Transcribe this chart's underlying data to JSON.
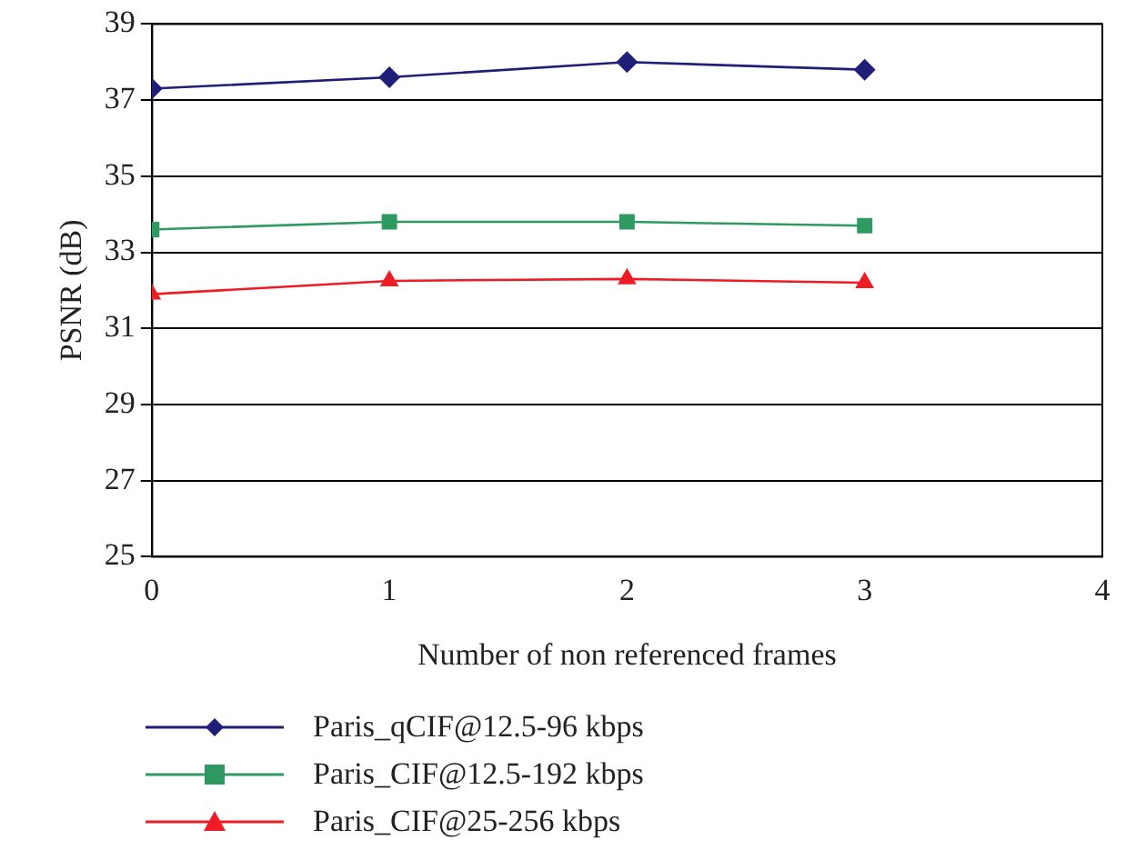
{
  "chart_data": {
    "type": "line",
    "xlabel": "Number of non referenced frames",
    "ylabel": "PSNR (dB)",
    "xlim": [
      0,
      4
    ],
    "xticks": [
      0,
      1,
      2,
      3,
      4
    ],
    "ylim": [
      25,
      39
    ],
    "yticks": [
      25,
      27,
      29,
      31,
      33,
      35,
      37,
      39
    ],
    "grid": "y",
    "legend": "bottom",
    "line_style": "solid",
    "series": [
      {
        "name": "Paris_qCIF@12.5-96 kbps",
        "color": "#1f1f7a",
        "marker": "diamond",
        "x": [
          0,
          1,
          2,
          3
        ],
        "values": [
          37.3,
          37.6,
          38.0,
          37.8
        ]
      },
      {
        "name": "Paris_CIF@12.5-192 kbps",
        "color": "#2e9a62",
        "marker": "square",
        "x": [
          0,
          1,
          2,
          3
        ],
        "values": [
          33.6,
          33.8,
          33.8,
          33.7
        ]
      },
      {
        "name": "Paris_CIF@25-256 kbps",
        "color": "#ee1c24",
        "marker": "triangle",
        "x": [
          0,
          1,
          2,
          3
        ],
        "values": [
          31.9,
          32.25,
          32.3,
          32.2
        ]
      }
    ]
  }
}
